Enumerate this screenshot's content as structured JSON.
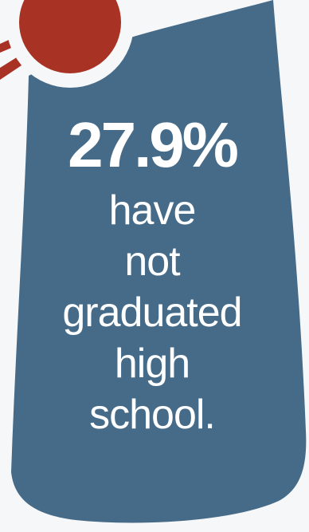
{
  "colors": {
    "background": "#f6f7f8",
    "banner": "#456b89",
    "accent": "#a83224",
    "text": "#ffffff"
  },
  "icons": {
    "sun": "sun-icon"
  },
  "stat": {
    "value": "27.9%",
    "lines": [
      "have",
      "not",
      "graduated",
      "high",
      "school."
    ]
  }
}
